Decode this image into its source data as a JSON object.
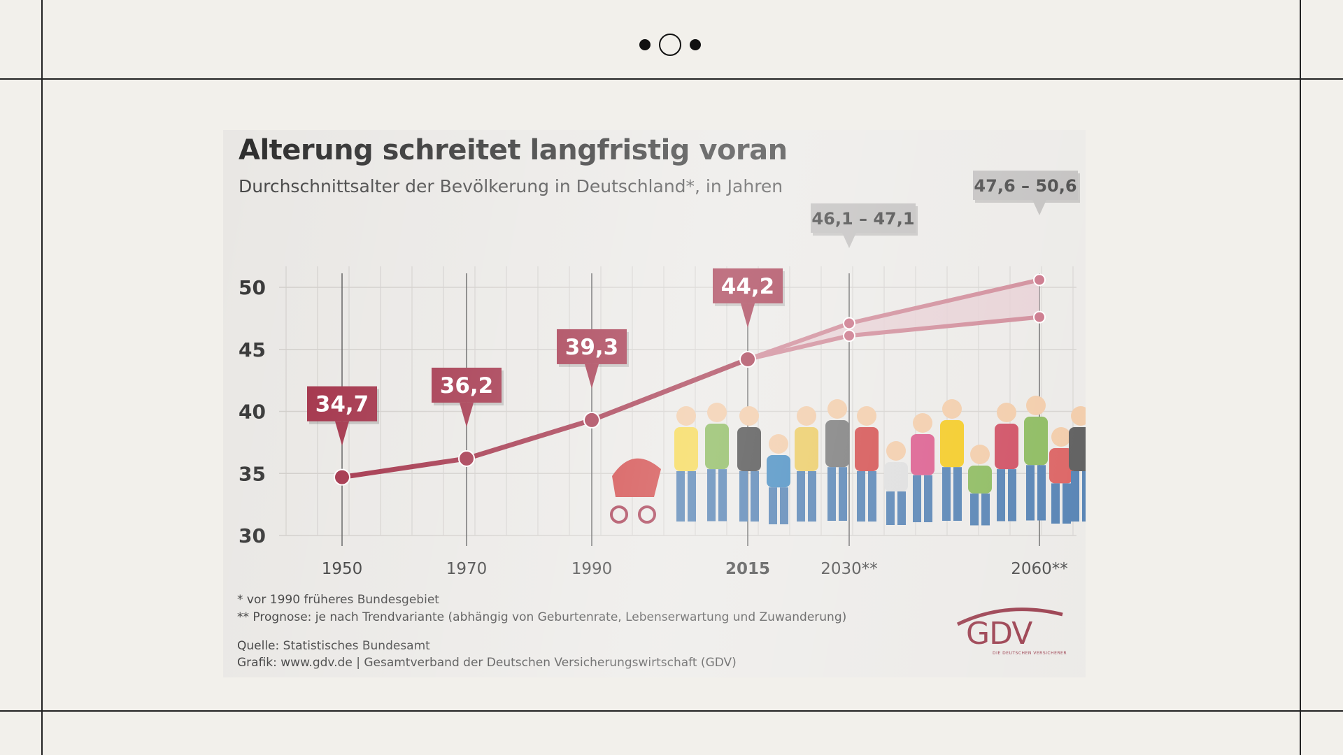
{
  "colors": {
    "background": "#f2f0eb",
    "accent": "#8c2335",
    "line": "#b03a52",
    "forecast_band": "#e3c7cc"
  },
  "slide_nav": {
    "icon": "slide-dots-icon"
  },
  "chart_data": {
    "type": "line",
    "title": "Alterung schreitet langfristig voran",
    "subtitle": "Durchschnittsalter der Bevölkerung in Deutschland*, in Jahren",
    "x_tick_labels": [
      "1950",
      "1970",
      "1990",
      "2015",
      "2030**",
      "2060**"
    ],
    "x": [
      1950,
      1970,
      1990,
      2015,
      2030,
      2060
    ],
    "ylim": [
      30,
      50
    ],
    "yticks": [
      30,
      35,
      40,
      45,
      50
    ],
    "grid": true,
    "series": [
      {
        "values": [
          34.7,
          36.2,
          39.3,
          44.2,
          46.1,
          47.6
        ]
      },
      {
        "values": [
          34.7,
          36.2,
          39.3,
          44.2,
          47.1,
          50.6
        ]
      }
    ],
    "data_labels": [
      {
        "x": 1950,
        "text": "34,7",
        "style": "historic"
      },
      {
        "x": 1970,
        "text": "36,2",
        "style": "historic"
      },
      {
        "x": 1990,
        "text": "39,3",
        "style": "historic"
      },
      {
        "x": 2015,
        "text": "44,2",
        "style": "historic"
      },
      {
        "x": 2030,
        "text": "46,1 – 47,1",
        "style": "forecast"
      },
      {
        "x": 2060,
        "text": "47,6 – 50,6",
        "style": "forecast"
      }
    ],
    "footnotes": [
      "* vor 1990 früheres Bundesgebiet",
      "** Prognose: je nach Trendvariante (abhängig von Geburtenrate, Lebenserwartung und Zuwanderung)"
    ],
    "source": "Quelle: Statistisches Bundesamt",
    "credit": "Grafik: www.gdv.de | Gesamtverband der Deutschen Versicherungswirtschaft (GDV)"
  },
  "logo": {
    "text": "GDV",
    "tagline": "DIE DEUTSCHEN VERSICHERER"
  }
}
